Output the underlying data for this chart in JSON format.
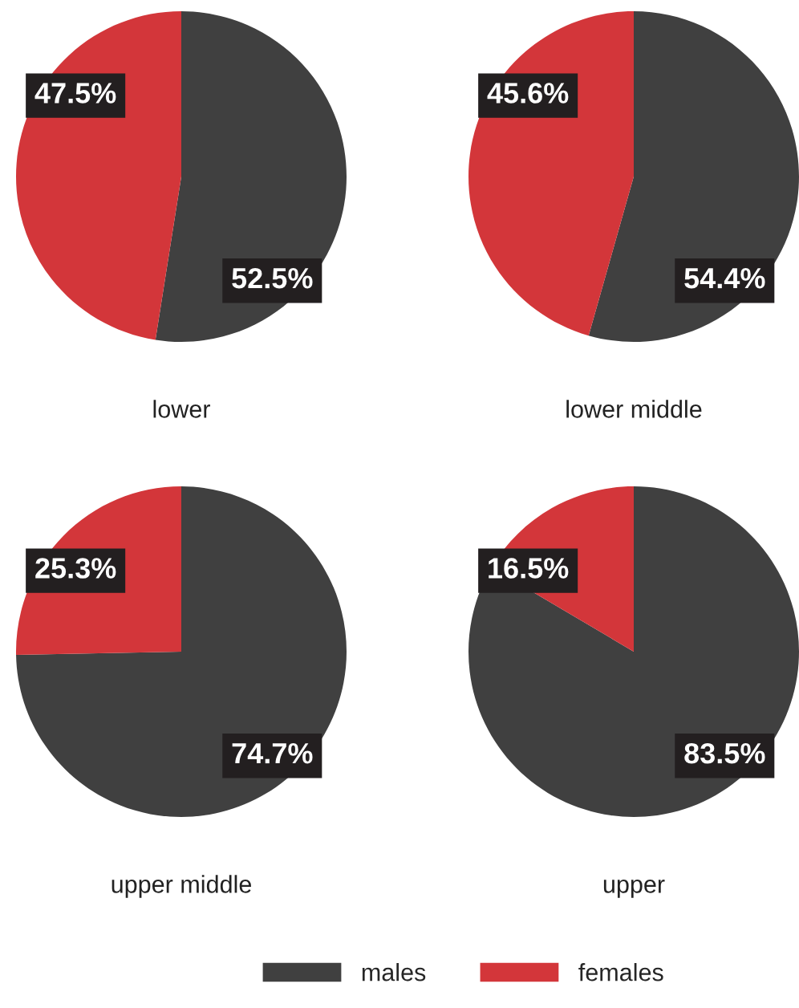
{
  "chart_data": [
    {
      "type": "pie",
      "title": "lower",
      "categories": [
        "males",
        "females"
      ],
      "values": [
        52.5,
        47.5
      ],
      "colors": [
        "#404040",
        "#d3363a"
      ],
      "value_labels": [
        "52.5%",
        "47.5%"
      ],
      "legend": "bottom"
    },
    {
      "type": "pie",
      "title": "lower middle",
      "categories": [
        null,
        null
      ],
      "values": [
        54.4,
        45.6
      ],
      "colors": [
        "#404040",
        "#d3363a"
      ],
      "value_labels": [
        "54.4%",
        "45.6%"
      ]
    },
    {
      "type": "pie",
      "title": "upper middle",
      "categories": [
        null,
        null
      ],
      "values": [
        74.7,
        25.3
      ],
      "colors": [
        "#404040",
        "#d3363a"
      ],
      "value_labels": [
        "74.7%",
        "25.3%"
      ]
    },
    {
      "type": "pie",
      "title": "upper",
      "categories": [
        null,
        null
      ],
      "values": [
        83.5,
        16.5
      ],
      "colors": [
        "#404040",
        "#d3363a"
      ],
      "value_labels": [
        "83.5%",
        "16.5%"
      ]
    }
  ]
}
